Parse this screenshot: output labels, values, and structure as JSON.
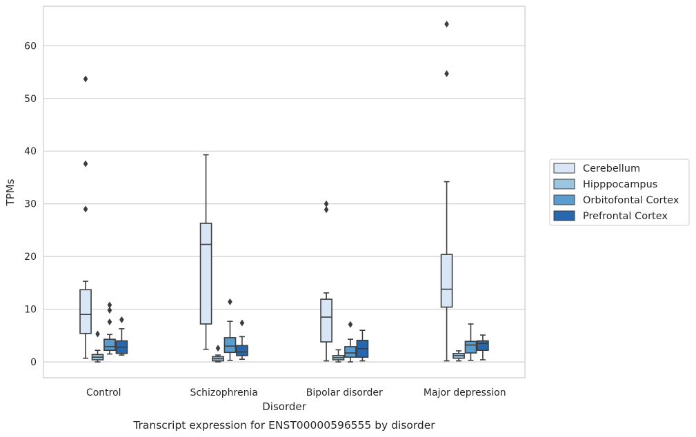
{
  "chart_data": {
    "type": "box",
    "xlabel": "Disorder",
    "ylabel": "TPMs",
    "caption": "Transcript expression for ENST00000596555 by disorder",
    "ylim": [
      -3,
      67.5
    ],
    "yticks": [
      0,
      10,
      20,
      30,
      40,
      50,
      60
    ],
    "grid": "horizontal",
    "legend_placement": "right",
    "categories": [
      "Control",
      "Schizophrenia",
      "Bipolar disorder",
      "Major depression"
    ],
    "series": [
      {
        "name": "Cerebellum",
        "color": "#d8e6f5",
        "boxes": [
          {
            "whislo": 0.7,
            "q1": 5.4,
            "med": 9.0,
            "q3": 13.7,
            "whishi": 15.3,
            "fliers": [
              53.7,
              37.6,
              29.0
            ]
          },
          {
            "whislo": 2.4,
            "q1": 7.2,
            "med": 22.3,
            "q3": 26.3,
            "whishi": 39.3,
            "fliers": []
          },
          {
            "whislo": 0.2,
            "q1": 3.8,
            "med": 8.5,
            "q3": 11.9,
            "whishi": 13.1,
            "fliers": [
              30.0,
              28.9
            ]
          },
          {
            "whislo": 0.2,
            "q1": 10.4,
            "med": 13.8,
            "q3": 20.4,
            "whishi": 34.2,
            "fliers": [
              64.1,
              54.7
            ]
          }
        ]
      },
      {
        "name": "Hipppocampus",
        "color": "#9cc5df",
        "boxes": [
          {
            "whislo": 0.0,
            "q1": 0.4,
            "med": 0.9,
            "q3": 1.4,
            "whishi": 2.2,
            "fliers": [
              5.3
            ]
          },
          {
            "whislo": 0.0,
            "q1": 0.2,
            "med": 0.6,
            "q3": 1.0,
            "whishi": 1.3,
            "fliers": [
              2.6
            ]
          },
          {
            "whislo": 0.0,
            "q1": 0.4,
            "med": 0.8,
            "q3": 1.2,
            "whishi": 2.3,
            "fliers": []
          },
          {
            "whislo": 0.2,
            "q1": 0.7,
            "med": 1.2,
            "q3": 1.6,
            "whishi": 2.1,
            "fliers": []
          }
        ]
      },
      {
        "name": "Orbitofontal Cortex",
        "color": "#5a9ccd",
        "boxes": [
          {
            "whislo": 1.5,
            "q1": 2.2,
            "med": 2.9,
            "q3": 4.3,
            "whishi": 5.2,
            "fliers": [
              10.8,
              9.8,
              7.6
            ]
          },
          {
            "whislo": 0.3,
            "q1": 1.8,
            "med": 3.0,
            "q3": 4.6,
            "whishi": 7.7,
            "fliers": [
              11.4
            ]
          },
          {
            "whislo": 0.0,
            "q1": 0.9,
            "med": 1.7,
            "q3": 2.9,
            "whishi": 4.3,
            "fliers": [
              7.1
            ]
          },
          {
            "whislo": 0.3,
            "q1": 1.7,
            "med": 3.2,
            "q3": 3.9,
            "whishi": 7.2,
            "fliers": []
          }
        ]
      },
      {
        "name": "Prefrontal Cortex",
        "color": "#2767ad",
        "boxes": [
          {
            "whislo": 1.3,
            "q1": 1.6,
            "med": 2.8,
            "q3": 4.0,
            "whishi": 6.3,
            "fliers": [
              8.0
            ]
          },
          {
            "whislo": 0.5,
            "q1": 1.2,
            "med": 1.9,
            "q3": 3.1,
            "whishi": 4.8,
            "fliers": [
              7.4
            ]
          },
          {
            "whislo": 0.2,
            "q1": 0.9,
            "med": 2.5,
            "q3": 4.1,
            "whishi": 6.0,
            "fliers": []
          },
          {
            "whislo": 0.4,
            "q1": 2.2,
            "med": 3.5,
            "q3": 4.0,
            "whishi": 5.1,
            "fliers": []
          }
        ]
      }
    ]
  }
}
